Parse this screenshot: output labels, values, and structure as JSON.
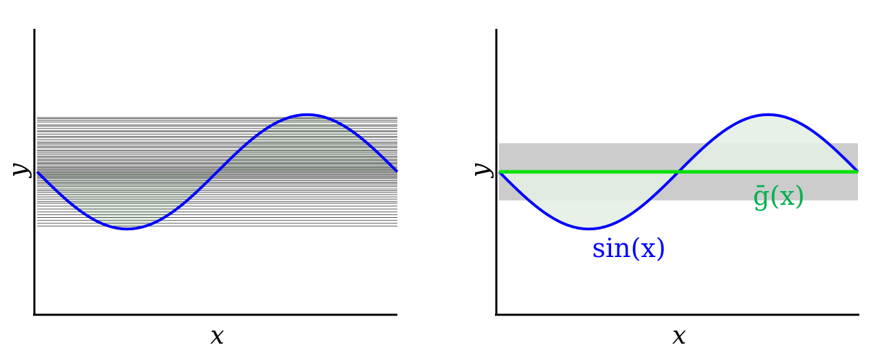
{
  "chart_data": [
    {
      "type": "line",
      "panel": "left",
      "xlabel": "x",
      "ylabel": "y",
      "xlim": [
        -3.14159,
        3.14159
      ],
      "ylim": [
        -2.5,
        2.5
      ],
      "grid": false,
      "series": [
        {
          "function": "sin(x)",
          "x": [
            -3.14159,
            -2.356,
            -1.571,
            -0.785,
            0,
            0.785,
            1.571,
            2.356,
            3.14159
          ],
          "y": [
            0,
            -0.707,
            -1,
            -0.707,
            0,
            0.707,
            1,
            0.707,
            0
          ],
          "color": "#0000ff"
        }
      ],
      "horizontal_lines_y": [
        0.95,
        0.93,
        0.9,
        0.87,
        0.82,
        0.8,
        0.76,
        0.72,
        0.7,
        0.66,
        0.62,
        0.6,
        0.56,
        0.52,
        0.5,
        0.47,
        0.44,
        0.42,
        0.38,
        0.36,
        0.33,
        0.3,
        0.27,
        0.25,
        0.22,
        0.2,
        0.17,
        0.15,
        0.13,
        0.1,
        0.08,
        0.06,
        0.04,
        0.02,
        0.0,
        -0.02,
        -0.04,
        -0.06,
        -0.08,
        -0.1,
        -0.12,
        -0.15,
        -0.18,
        -0.2,
        -0.23,
        -0.26,
        -0.3,
        -0.33,
        -0.36,
        -0.4,
        -0.44,
        -0.48,
        -0.52,
        -0.55,
        -0.6,
        -0.65,
        -0.7,
        -0.75,
        -0.8,
        -0.85,
        -0.9,
        -0.95
      ],
      "hline_color": "#555555",
      "fill_color": "#e3eee3"
    },
    {
      "type": "line",
      "panel": "right",
      "xlabel": "x",
      "ylabel": "y",
      "xlim": [
        -3.14159,
        3.14159
      ],
      "ylim": [
        -2.5,
        2.5
      ],
      "grid": false,
      "band": [
        -0.5,
        0.5
      ],
      "band_color": "#cccccc",
      "series": [
        {
          "name": "sin(x)",
          "function": "sin(x)",
          "x": [
            -3.14159,
            -2.356,
            -1.571,
            -0.785,
            0,
            0.785,
            1.571,
            2.356,
            3.14159
          ],
          "y": [
            0,
            -0.707,
            -1,
            -0.707,
            0,
            0.707,
            1,
            0.707,
            0
          ],
          "color": "#0000ff"
        },
        {
          "name": "ḡ(x)",
          "x": [
            -3.14159,
            3.14159
          ],
          "y": [
            0,
            0
          ],
          "color": "#00e000"
        }
      ],
      "fill_color": "#e3eee3",
      "label_sin_color": "#0000ff",
      "label_g_color": "#00b050"
    }
  ]
}
